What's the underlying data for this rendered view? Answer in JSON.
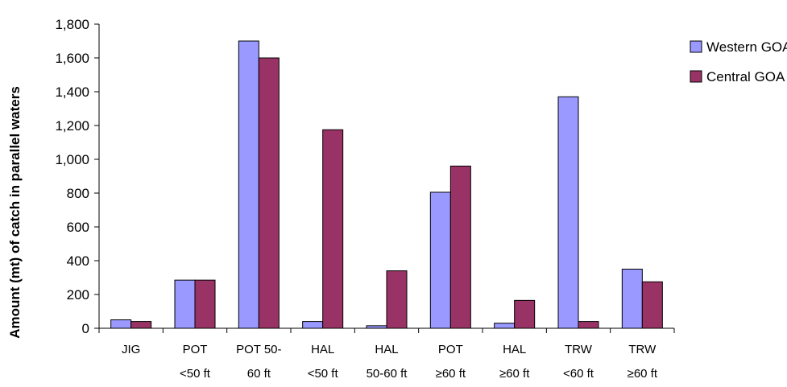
{
  "chart_data": {
    "type": "bar",
    "title": "",
    "xlabel": "",
    "ylabel": "Amount (mt) of catch in parallel waters",
    "ylim": [
      0,
      1800
    ],
    "yticks": [
      0,
      200,
      400,
      600,
      800,
      1000,
      1200,
      1400,
      1600,
      1800
    ],
    "ytick_labels": [
      "0",
      "200",
      "400",
      "600",
      "800",
      "1,000",
      "1,200",
      "1,400",
      "1,600",
      "1,800"
    ],
    "categories": [
      [
        "JIG"
      ],
      [
        "POT",
        "<50 ft"
      ],
      [
        "POT 50-",
        "60 ft"
      ],
      [
        "HAL",
        "<50 ft"
      ],
      [
        "HAL",
        "50-60 ft"
      ],
      [
        "POT",
        "≥60 ft"
      ],
      [
        "HAL",
        "≥60 ft"
      ],
      [
        "TRW",
        "<60 ft"
      ],
      [
        "TRW",
        "≥60 ft"
      ]
    ],
    "series": [
      {
        "name": "Western GOA",
        "color": "#9999ff",
        "values": [
          50,
          285,
          1700,
          40,
          15,
          805,
          30,
          1370,
          350
        ]
      },
      {
        "name": "Central GOA",
        "color": "#993366",
        "values": [
          40,
          285,
          1600,
          1175,
          340,
          960,
          165,
          40,
          275
        ]
      }
    ],
    "grid": false,
    "legend": "right"
  }
}
